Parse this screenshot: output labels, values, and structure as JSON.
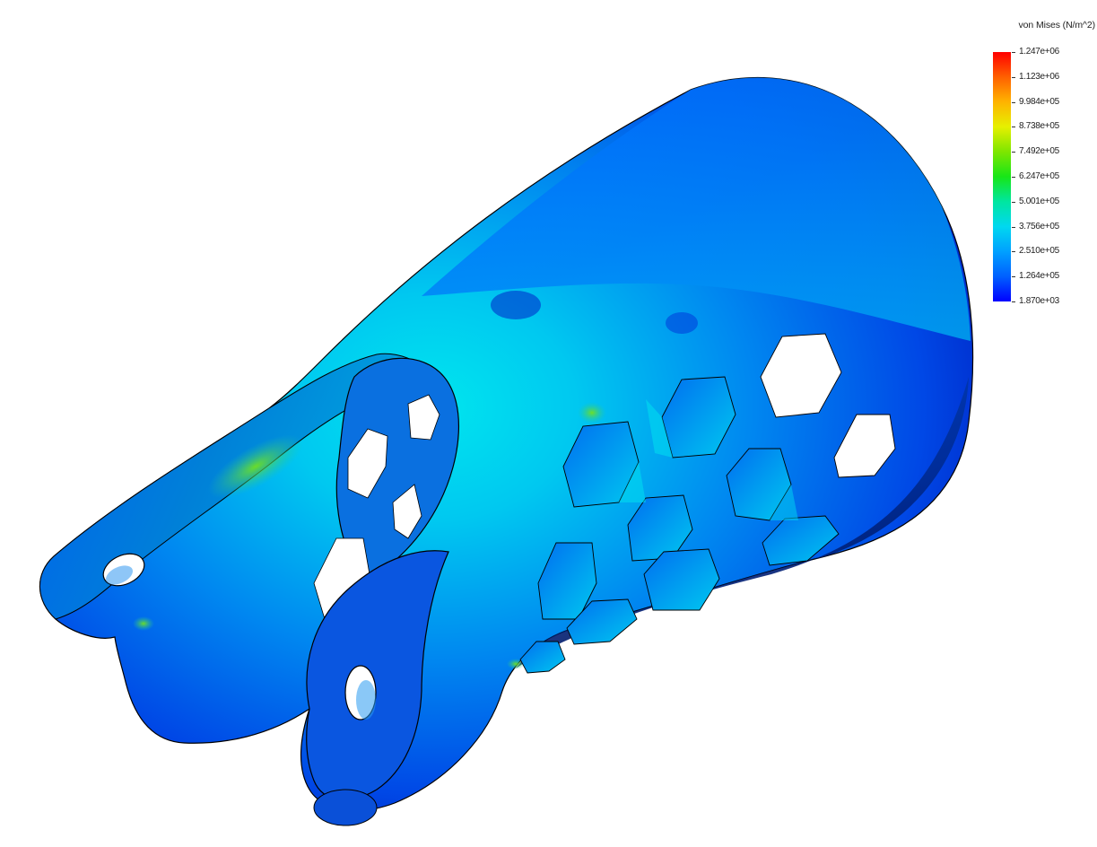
{
  "legend": {
    "title": "von Mises (N/m^2)",
    "labels": [
      "1.247e+06",
      "1.123e+06",
      "9.984e+05",
      "8.738e+05",
      "7.492e+05",
      "6.247e+05",
      "5.001e+05",
      "3.756e+05",
      "2.510e+05",
      "1.264e+05",
      "1.870e+03"
    ],
    "max_value": 1247000,
    "min_value": 1870
  },
  "model": {
    "colors": {
      "low_stress": "#0030e0",
      "mid_stress": "#00e0e0",
      "high_stress": "#40e020",
      "peak_stress": "#ff0000",
      "edge": "#000000"
    }
  }
}
